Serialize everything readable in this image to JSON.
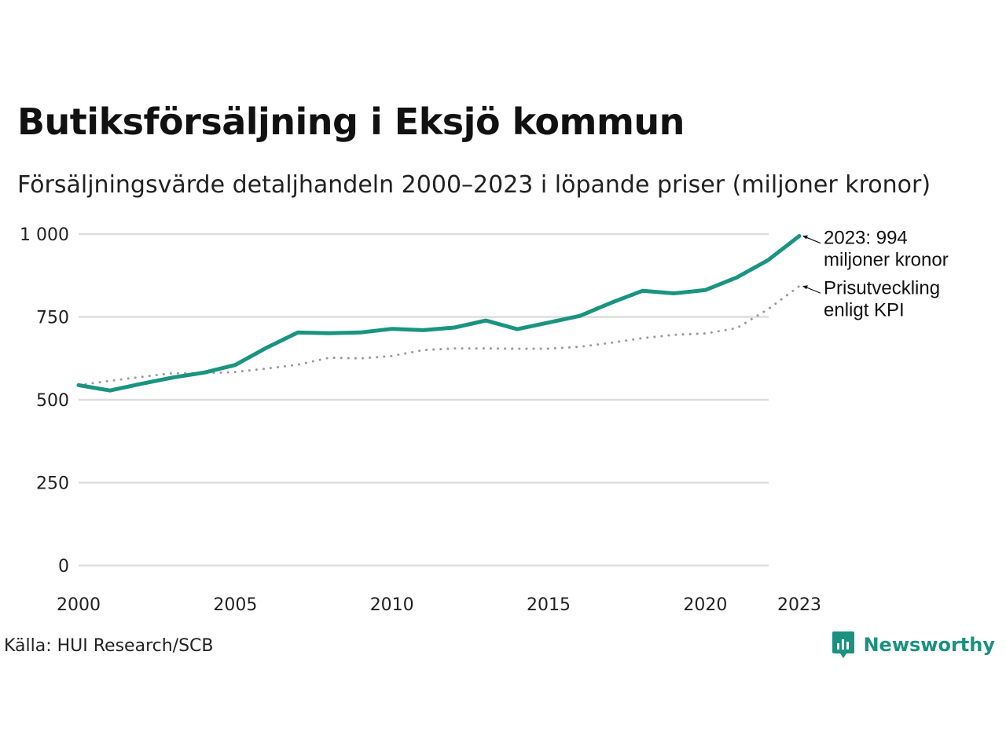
{
  "title": "Butiksförsäljning i Eksjö kommun",
  "subtitle": "Försäljningsvärde detaljhandeln 2000–2023 i löpande priser (miljoner kronor)",
  "source": "Källa: HUI Research/SCB",
  "brand": "Newsworthy",
  "colors": {
    "sales": "#1a9481",
    "kpi": "#9a9a9a",
    "grid": "#dddddd",
    "text": "#111111",
    "brand": "#1b9180"
  },
  "chart_data": {
    "type": "line",
    "x": [
      2000,
      2001,
      2002,
      2003,
      2004,
      2005,
      2006,
      2007,
      2008,
      2009,
      2010,
      2011,
      2012,
      2013,
      2014,
      2015,
      2016,
      2017,
      2018,
      2019,
      2020,
      2021,
      2022,
      2023
    ],
    "series": [
      {
        "name": "Försäljningsvärde",
        "style": "solid",
        "values": [
          544,
          528,
          548,
          567,
          582,
          605,
          657,
          703,
          701,
          703,
          714,
          710,
          718,
          739,
          713,
          733,
          753,
          793,
          829,
          821,
          831,
          869,
          921,
          994
        ]
      },
      {
        "name": "Prisutveckling enligt KPI",
        "style": "dotted",
        "values": [
          544,
          557,
          569,
          580,
          580,
          584,
          594,
          606,
          627,
          625,
          632,
          650,
          655,
          655,
          654,
          654,
          660,
          672,
          686,
          696,
          700,
          716,
          773,
          843
        ]
      }
    ],
    "yticks": [
      0,
      250,
      500,
      750,
      1000
    ],
    "ytick_labels": [
      "0",
      "250",
      "500",
      "750",
      "1 000"
    ],
    "xticks": [
      2000,
      2005,
      2010,
      2015,
      2020,
      2023
    ],
    "xtick_labels": [
      "2000",
      "2005",
      "2010",
      "2015",
      "2020",
      "2023"
    ],
    "ylim": [
      0,
      1000
    ],
    "xlim": [
      2000,
      2023
    ],
    "xlabel": "",
    "ylabel": "",
    "annotations": [
      {
        "series": 0,
        "lines": [
          "2023: 994",
          "miljoner kronor"
        ]
      },
      {
        "series": 1,
        "lines": [
          "Prisutveckling",
          "enligt KPI"
        ]
      }
    ]
  }
}
